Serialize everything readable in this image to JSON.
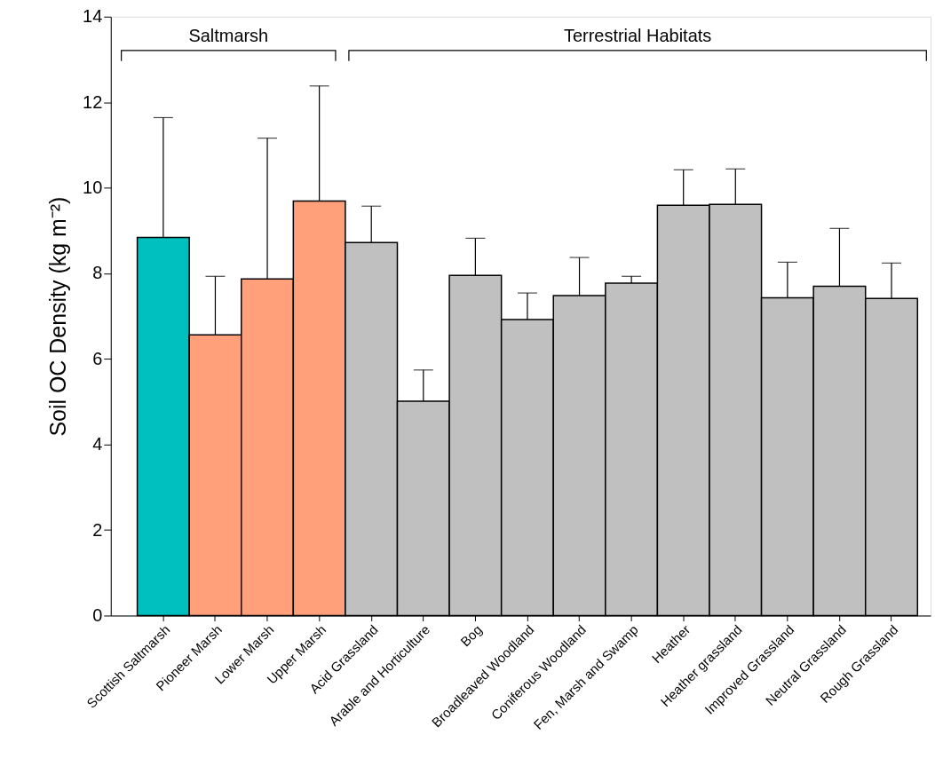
{
  "chart_data": {
    "type": "bar",
    "ylabel": "Soil OC Density (kg m⁻²)",
    "categories": [
      "Scottish Saltmarsh",
      "Pioneer Marsh",
      "Lower Marsh",
      "Upper Marsh",
      "Acid Grassland",
      "Arable and Horticulture",
      "Bog",
      "Broadleaved Woodland",
      "Coniferous Woodland",
      "Fen, Marsh and Swamp",
      "Heather",
      "Heather grassland",
      "Improved Grassland",
      "Neutral Grassland",
      "Rough Grassland"
    ],
    "values": [
      8.84,
      6.56,
      7.87,
      9.69,
      8.72,
      5.01,
      7.95,
      6.92,
      7.48,
      7.77,
      9.59,
      9.61,
      7.43,
      7.7,
      7.41
    ],
    "errors": [
      [
        8.84,
        11.64
      ],
      [
        6.56,
        7.93
      ],
      [
        7.87,
        11.16
      ],
      [
        9.69,
        12.38
      ],
      [
        8.72,
        9.57
      ],
      [
        5.01,
        5.74
      ],
      [
        7.95,
        8.82
      ],
      [
        6.92,
        7.54
      ],
      [
        7.48,
        8.37
      ],
      [
        7.77,
        7.93
      ],
      [
        9.59,
        10.42
      ],
      [
        9.61,
        10.44
      ],
      [
        7.43,
        8.26
      ],
      [
        7.7,
        9.05
      ],
      [
        7.41,
        8.24
      ]
    ],
    "colors": [
      "#00bfbf",
      "#ffa07a",
      "#ffa07a",
      "#ffa07a",
      "#c0c0c0",
      "#c0c0c0",
      "#c0c0c0",
      "#c0c0c0",
      "#c0c0c0",
      "#c0c0c0",
      "#c0c0c0",
      "#c0c0c0",
      "#c0c0c0",
      "#c0c0c0",
      "#c0c0c0"
    ],
    "annotations": [
      "Saltmarsh",
      "Terrestrial Habitats"
    ],
    "ylim": [
      0,
      14
    ],
    "yticks": [
      0,
      2,
      4,
      6,
      8,
      10,
      12,
      14
    ],
    "grid": false
  }
}
